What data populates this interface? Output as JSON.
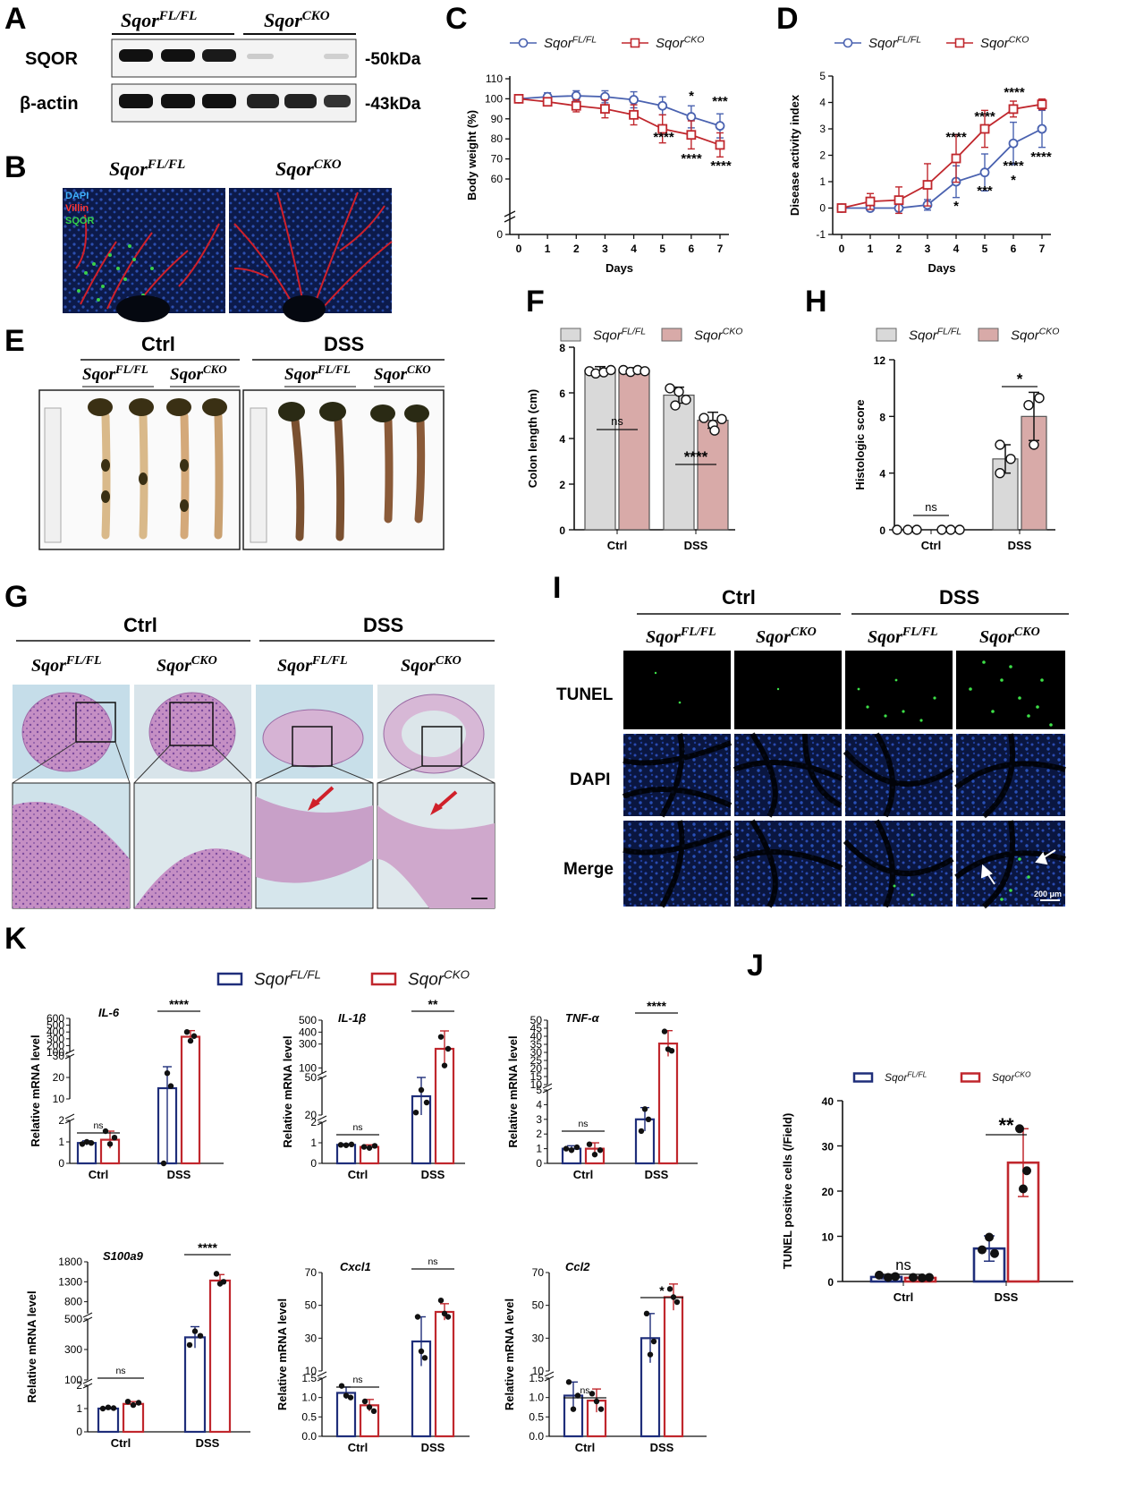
{
  "panel_letters": [
    "A",
    "B",
    "C",
    "D",
    "E",
    "F",
    "G",
    "H",
    "I",
    "J",
    "K"
  ],
  "genotypes": {
    "fl_base": "Sqor",
    "fl_sup": "FL/FL",
    "cko_base": "Sqor",
    "cko_sup": "CKO"
  },
  "conditions": {
    "ctrl": "Ctrl",
    "dss": "DSS"
  },
  "panel_a": {
    "rows": [
      {
        "label": "SQOR",
        "size": "-50kDa"
      },
      {
        "label": "β-actin",
        "size": "-43kDa"
      }
    ]
  },
  "panel_b": {
    "stains": [
      "DAPI",
      "Villin",
      "SQOR"
    ]
  },
  "panel_i": {
    "rows": [
      "TUNEL",
      "DAPI",
      "Merge"
    ],
    "scale": "200 μm"
  },
  "colors": {
    "fl": "#4a62b0",
    "cko": "#c0272d",
    "fl_bar": "#d9d9d9",
    "cko_bar": "#d8aaa8",
    "k_fl": "#1f2e7a",
    "k_cko": "#c0272d"
  },
  "chart_data": [
    {
      "panel": "C",
      "type": "line",
      "xlabel": "Days",
      "ylabel": "Body weight (%)",
      "x": [
        0,
        1,
        2,
        3,
        4,
        5,
        6,
        7
      ],
      "ylim": [
        0,
        110
      ],
      "series": [
        {
          "name": "SqorFL/FL",
          "values": [
            100,
            101,
            101.5,
            101,
            99.5,
            96.5,
            91,
            86.5
          ],
          "err": [
            0,
            2,
            2.5,
            3,
            4,
            4.5,
            5.5,
            6
          ]
        },
        {
          "name": "SqorCKO",
          "values": [
            100,
            98.5,
            96.5,
            95,
            92,
            85,
            82,
            77
          ],
          "err": [
            0,
            2,
            3,
            4.5,
            5,
            7,
            7,
            6
          ]
        }
      ],
      "annotations": [
        "*",
        "***",
        "****",
        "****",
        "****"
      ]
    },
    {
      "panel": "D",
      "type": "line",
      "xlabel": "Days",
      "ylabel": "Disease activity index",
      "x": [
        0,
        1,
        2,
        3,
        4,
        5,
        6,
        7
      ],
      "ylim": [
        -1,
        5
      ],
      "series": [
        {
          "name": "SqorFL/FL",
          "values": [
            0,
            0,
            0,
            0.12,
            1,
            1.35,
            2.45,
            3
          ],
          "err": [
            0,
            0,
            0,
            0.2,
            0.6,
            0.7,
            0.8,
            0.7
          ]
        },
        {
          "name": "SqorCKO",
          "values": [
            0,
            0.25,
            0.3,
            0.88,
            1.88,
            3,
            3.75,
            3.93
          ],
          "err": [
            0,
            0.3,
            0.5,
            0.8,
            0.9,
            0.7,
            0.3,
            0.2
          ]
        }
      ],
      "annotations": [
        "*",
        "****",
        "***",
        "****",
        "*",
        "****",
        "****",
        "****"
      ]
    },
    {
      "panel": "F",
      "type": "bar",
      "ylabel": "Colon length (cm)",
      "categories": [
        "Ctrl",
        "DSS"
      ],
      "ylim": [
        0,
        8
      ],
      "series": [
        {
          "name": "SqorFL/FL",
          "values": [
            7.0,
            5.9
          ]
        },
        {
          "name": "SqorCKO",
          "values": [
            7.0,
            4.8
          ]
        }
      ],
      "annotations": [
        "ns",
        "****"
      ]
    },
    {
      "panel": "H",
      "type": "bar",
      "ylabel": "Histologic score",
      "categories": [
        "Ctrl",
        "DSS"
      ],
      "ylim": [
        0,
        12
      ],
      "series": [
        {
          "name": "SqorFL/FL",
          "values": [
            0,
            5
          ]
        },
        {
          "name": "SqorCKO",
          "values": [
            0,
            8
          ]
        }
      ],
      "annotations": [
        "ns",
        "*"
      ]
    },
    {
      "panel": "J",
      "type": "bar",
      "ylabel": "TUNEL positive cells (/Field)",
      "categories": [
        "Ctrl",
        "DSS"
      ],
      "ylim": [
        0,
        40
      ],
      "series": [
        {
          "name": "SqorFL/FL",
          "values": [
            1,
            7.3
          ]
        },
        {
          "name": "SqorCKO",
          "values": [
            0.8,
            26.3
          ]
        }
      ],
      "annotations": [
        "ns",
        "**"
      ]
    },
    {
      "panel": "K",
      "type": "bar",
      "gene": "IL-6",
      "ylabel": "Relative mRNA level",
      "categories": [
        "Ctrl",
        "DSS"
      ],
      "series": [
        {
          "name": "SqorFL/FL",
          "values": [
            0.95,
            15
          ]
        },
        {
          "name": "SqorCKO",
          "values": [
            1.1,
            330
          ]
        }
      ],
      "annotations": [
        "ns",
        "****"
      ]
    },
    {
      "panel": "K",
      "type": "bar",
      "gene": "IL-1β",
      "ylabel": "Relative mRNA level",
      "categories": [
        "Ctrl",
        "DSS"
      ],
      "series": [
        {
          "name": "SqorFL/FL",
          "values": [
            0.9,
            35
          ]
        },
        {
          "name": "SqorCKO",
          "values": [
            0.8,
            260
          ]
        }
      ],
      "annotations": [
        "ns",
        "**"
      ]
    },
    {
      "panel": "K",
      "type": "bar",
      "gene": "TNF-α",
      "ylabel": "Relative mRNA level",
      "categories": [
        "Ctrl",
        "DSS"
      ],
      "series": [
        {
          "name": "SqorFL/FL",
          "values": [
            1.0,
            3.0
          ]
        },
        {
          "name": "SqorCKO",
          "values": [
            1.0,
            35.5
          ]
        }
      ],
      "annotations": [
        "ns",
        "****"
      ]
    },
    {
      "panel": "K",
      "type": "bar",
      "gene": "S100a9",
      "ylabel": "Relative mRNA level",
      "categories": [
        "Ctrl",
        "DSS"
      ],
      "series": [
        {
          "name": "SqorFL/FL",
          "values": [
            1.0,
            380
          ]
        },
        {
          "name": "SqorCKO",
          "values": [
            1.2,
            1330
          ]
        }
      ],
      "annotations": [
        "ns",
        "****"
      ]
    },
    {
      "panel": "K",
      "type": "bar",
      "gene": "Cxcl1",
      "ylabel": "Relative mRNA level",
      "categories": [
        "Ctrl",
        "DSS"
      ],
      "series": [
        {
          "name": "SqorFL/FL",
          "values": [
            1.12,
            28
          ]
        },
        {
          "name": "SqorCKO",
          "values": [
            0.8,
            46
          ]
        }
      ],
      "annotations": [
        "ns",
        "ns"
      ]
    },
    {
      "panel": "K",
      "type": "bar",
      "gene": "Ccl2",
      "ylabel": "Relative mRNA level",
      "categories": [
        "Ctrl",
        "DSS"
      ],
      "series": [
        {
          "name": "SqorFL/FL",
          "values": [
            1.05,
            30
          ]
        },
        {
          "name": "SqorCKO",
          "values": [
            0.92,
            55
          ]
        }
      ],
      "annotations": [
        "ns",
        "*"
      ]
    }
  ],
  "tick_labels": {
    "C_y": [
      "0",
      "60",
      "70",
      "80",
      "90",
      "100",
      "110"
    ],
    "D_y": [
      "-1",
      "0",
      "1",
      "2",
      "3",
      "4",
      "5"
    ],
    "days": [
      "0",
      "1",
      "2",
      "3",
      "4",
      "5",
      "6",
      "7"
    ],
    "F_y": [
      "0",
      "2",
      "4",
      "6",
      "8"
    ],
    "H_y": [
      "0",
      "4",
      "8",
      "12"
    ],
    "J_y": [
      "0",
      "10",
      "20",
      "30",
      "40"
    ],
    "il6_y": [
      "0",
      "1",
      "2",
      "10",
      "20",
      "30",
      "100",
      "200",
      "300",
      "400",
      "500",
      "600"
    ],
    "il1b_y": [
      "0",
      "1",
      "2",
      "20",
      "50",
      "100",
      "300",
      "400",
      "500"
    ],
    "tnf_y": [
      "0",
      "1",
      "2",
      "3",
      "4",
      "5",
      "10",
      "15",
      "20",
      "25",
      "30",
      "35",
      "40",
      "45",
      "50"
    ],
    "s100a9_y": [
      "0",
      "1",
      "2",
      "100",
      "300",
      "500",
      "800",
      "1300",
      "1800"
    ],
    "cxcl1_y": [
      "0.0",
      "0.5",
      "1.0",
      "1.5",
      "10",
      "30",
      "50",
      "70"
    ],
    "ccl2_y": [
      "0.0",
      "0.5",
      "1.0",
      "1.5",
      "10",
      "30",
      "50",
      "70"
    ]
  }
}
